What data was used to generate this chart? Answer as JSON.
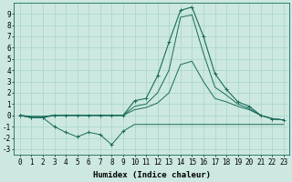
{
  "xlabel": "Humidex (Indice chaleur)",
  "x": [
    0,
    1,
    2,
    3,
    4,
    5,
    6,
    7,
    8,
    9,
    10,
    11,
    12,
    13,
    14,
    15,
    16,
    17,
    18,
    19,
    20,
    21,
    22,
    23
  ],
  "line_bottom_markers": [
    0.0,
    -0.2,
    -0.2,
    -1.0,
    -1.5,
    -1.9,
    -1.5,
    -1.7,
    -2.6,
    -1.4,
    -0.8,
    -0.8,
    -0.8,
    -0.8,
    -0.8,
    -0.8,
    -0.8,
    -0.8,
    -0.8,
    -0.8,
    -0.8,
    -0.8,
    -0.8,
    -0.8
  ],
  "line_bottom_zigzag_end": 9,
  "line_top": [
    0.0,
    -0.2,
    -0.2,
    0.0,
    0.0,
    0.0,
    0.0,
    0.0,
    0.0,
    0.0,
    1.3,
    1.5,
    3.5,
    6.5,
    9.3,
    9.6,
    7.0,
    3.7,
    2.3,
    1.2,
    0.8,
    0.0,
    -0.3,
    -0.4
  ],
  "line_mid1": [
    0.0,
    -0.1,
    -0.1,
    0.0,
    0.0,
    0.0,
    0.0,
    0.0,
    0.0,
    0.0,
    0.8,
    1.0,
    2.0,
    4.0,
    8.7,
    8.9,
    5.5,
    2.5,
    1.8,
    1.0,
    0.6,
    0.0,
    -0.3,
    -0.4
  ],
  "line_mid2": [
    0.0,
    -0.1,
    -0.1,
    0.0,
    0.0,
    0.0,
    0.0,
    0.0,
    0.0,
    0.0,
    0.5,
    0.7,
    1.1,
    2.0,
    4.5,
    4.8,
    3.0,
    1.5,
    1.2,
    0.8,
    0.5,
    0.0,
    -0.3,
    -0.4
  ],
  "bg_color": "#cce8e0",
  "grid_color": "#9ecfc4",
  "line_color": "#1a6b5a",
  "ylim_min": -3.5,
  "ylim_max": 10.0,
  "yticks": [
    -3,
    -2,
    -1,
    0,
    1,
    2,
    3,
    4,
    5,
    6,
    7,
    8,
    9
  ],
  "xticks": [
    0,
    1,
    2,
    3,
    4,
    5,
    6,
    7,
    8,
    9,
    10,
    11,
    12,
    13,
    14,
    15,
    16,
    17,
    18,
    19,
    20,
    21,
    22,
    23
  ],
  "tick_fontsize": 5.5,
  "xlabel_fontsize": 6.5
}
